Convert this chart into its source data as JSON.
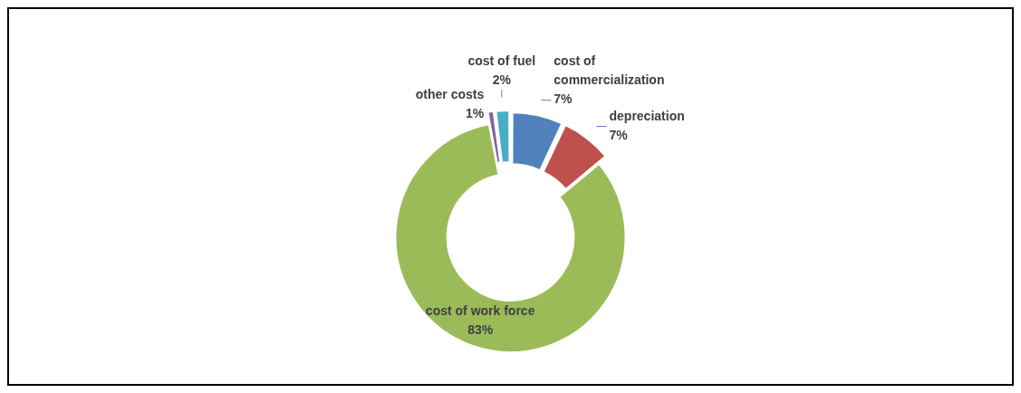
{
  "chart_data": {
    "type": "donut",
    "categories": [
      "cost of commercialization",
      "depreciation",
      "cost of work force",
      "other costs",
      "cost of fuel"
    ],
    "values": [
      7,
      7,
      83,
      1,
      2
    ],
    "colors": [
      "#4f81bd",
      "#c0504d",
      "#9bbb59",
      "#8064a2",
      "#4bacc6"
    ],
    "value_labels": [
      "7%",
      "7%",
      "83%",
      "1%",
      "2%"
    ],
    "legend": false
  }
}
